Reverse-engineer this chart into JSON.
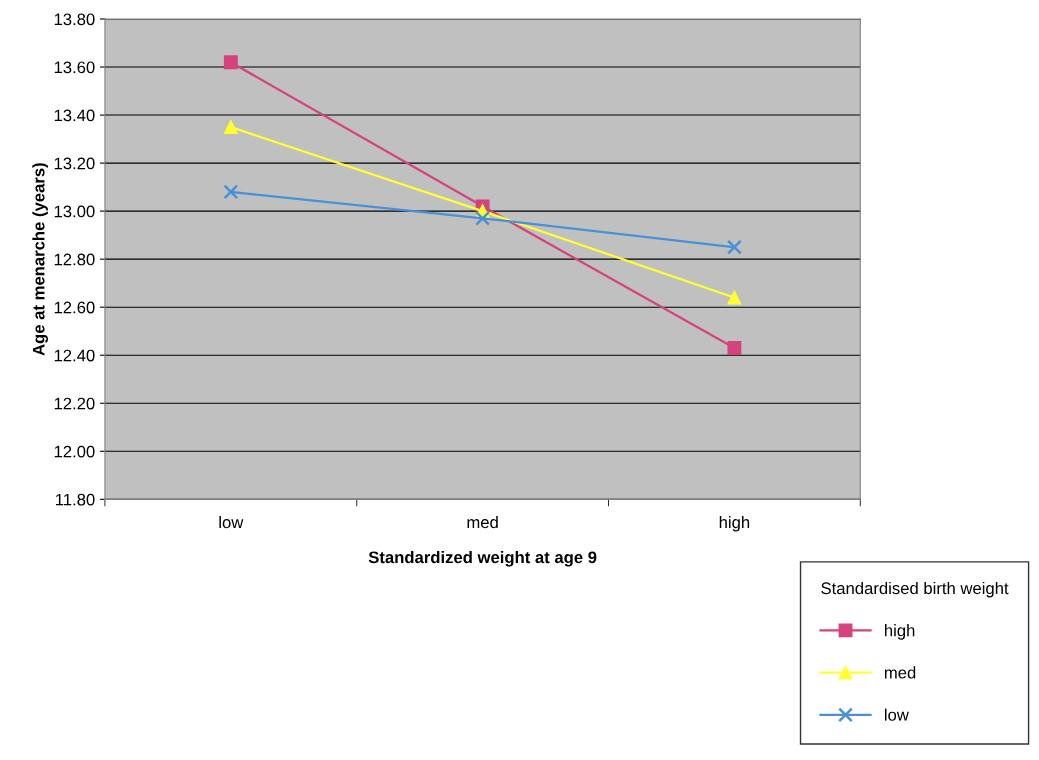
{
  "chart_data": {
    "type": "line",
    "xlabel": "Standardized weight at age 9",
    "ylabel": "Age at menarche (years)",
    "legend_title": "Standardised birth weight",
    "categories": [
      "low",
      "med",
      "high"
    ],
    "series": [
      {
        "name": "high",
        "color": "#d4437e",
        "marker": "square",
        "values": [
          13.62,
          13.02,
          12.43
        ]
      },
      {
        "name": "med",
        "color": "#ffff33",
        "marker": "triangle",
        "values": [
          13.35,
          13.0,
          12.64
        ]
      },
      {
        "name": "low",
        "color": "#4a90d9",
        "marker": "cross",
        "values": [
          13.08,
          12.97,
          12.85
        ]
      }
    ],
    "ylim": [
      11.8,
      13.8
    ],
    "yticks": [
      {
        "value": 11.8,
        "label": "11.80"
      },
      {
        "value": 12.0,
        "label": "12.00"
      },
      {
        "value": 12.2,
        "label": "12.20"
      },
      {
        "value": 12.4,
        "label": "12.40"
      },
      {
        "value": 12.6,
        "label": "12.60"
      },
      {
        "value": 12.8,
        "label": "12.80"
      },
      {
        "value": 13.0,
        "label": "13.00"
      },
      {
        "value": 13.2,
        "label": "13.20"
      },
      {
        "value": 13.4,
        "label": "13.40"
      },
      {
        "value": 13.6,
        "label": "13.60"
      },
      {
        "value": 13.8,
        "label": "13.80"
      }
    ],
    "grid": "y",
    "legend": "bottom right",
    "line_style": "solid"
  }
}
